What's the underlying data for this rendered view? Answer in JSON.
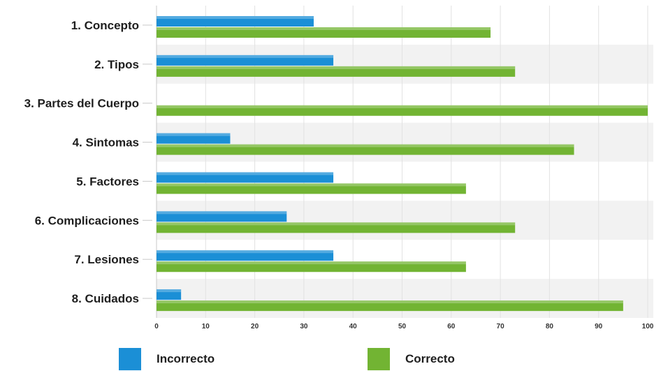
{
  "chart_data": {
    "type": "bar",
    "orientation": "horizontal",
    "categories": [
      "1. Concepto",
      "2. Tipos",
      "3. Partes del Cuerpo",
      "4. Sintomas",
      "5. Factores",
      "6. Complicaciones",
      "7. Lesiones",
      "8. Cuidados"
    ],
    "series": [
      {
        "name": "Incorrecto",
        "color": "#1b8fd6",
        "values": [
          32,
          36,
          0,
          15,
          36,
          26.5,
          36,
          5
        ]
      },
      {
        "name": "Correcto",
        "color": "#72b433",
        "values": [
          68,
          73,
          100,
          85,
          63,
          73,
          63,
          95
        ]
      }
    ],
    "xlim": [
      0,
      100
    ],
    "xticks": [
      "0",
      "10",
      "20",
      "30",
      "40",
      "50",
      "60",
      "70",
      "80",
      "90",
      "100"
    ],
    "grid": true,
    "legend_position": "bottom"
  }
}
